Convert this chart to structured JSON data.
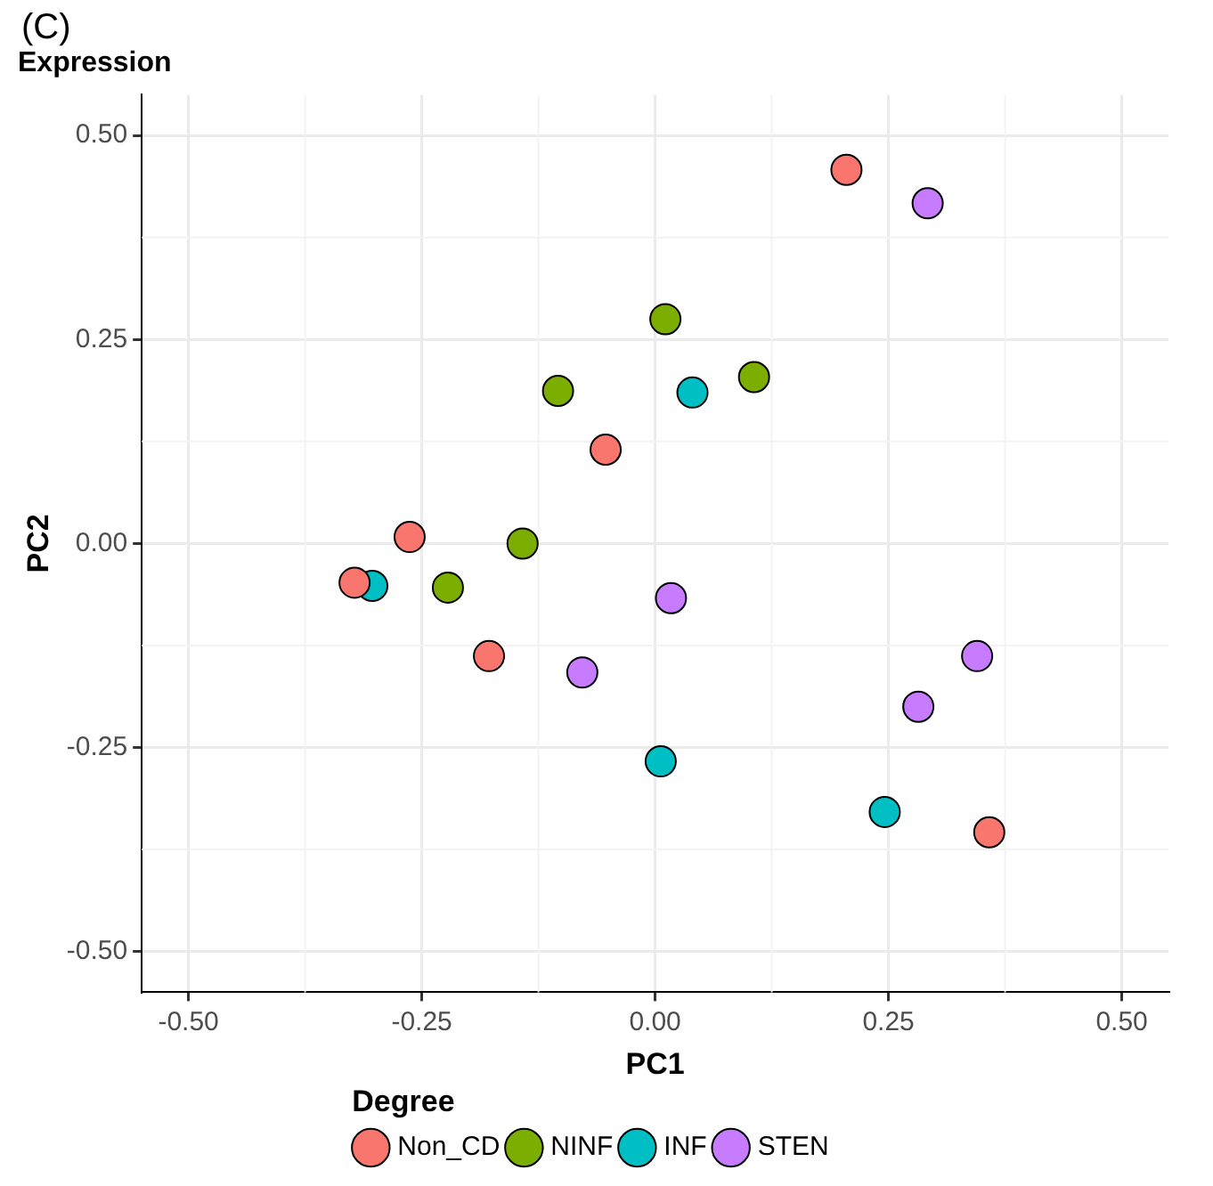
{
  "chart_data": {
    "type": "scatter",
    "title": "Expression",
    "xlabel": "PC1",
    "ylabel": "PC2",
    "legend_title": "Degree",
    "annotations": [
      "(C)"
    ],
    "xlim": [
      -0.55,
      0.55
    ],
    "ylim": [
      -0.55,
      0.55
    ],
    "xticks": [
      {
        "value": -0.5,
        "label": "-0.50"
      },
      {
        "value": -0.25,
        "label": "-0.25"
      },
      {
        "value": 0,
        "label": "0.00"
      },
      {
        "value": 0.25,
        "label": "0.25"
      },
      {
        "value": 0.5,
        "label": "0.50"
      }
    ],
    "yticks": [
      {
        "value": -0.5,
        "label": "-0.50"
      },
      {
        "value": -0.25,
        "label": "-0.25"
      },
      {
        "value": 0,
        "label": "0.00"
      },
      {
        "value": 0.25,
        "label": "0.25"
      },
      {
        "value": 0.5,
        "label": "0.50"
      }
    ],
    "grid": true,
    "legend": "bottom",
    "marker": "circle",
    "series": [
      {
        "name": "Non_CD",
        "color": "#f8766d",
        "x": [
          0.205,
          -0.053,
          -0.263,
          -0.322,
          -0.178,
          0.358
        ],
        "values": [
          0.458,
          0.115,
          0.008,
          -0.048,
          -0.138,
          -0.354
        ]
      },
      {
        "name": "NINF",
        "color": "#7cae00",
        "x": [
          0.011,
          -0.104,
          0.106,
          -0.142,
          -0.222
        ],
        "values": [
          0.275,
          0.187,
          0.204,
          0.0,
          -0.054
        ]
      },
      {
        "name": "INF",
        "color": "#00bfc4",
        "x": [
          0.04,
          -0.303,
          0.006,
          0.246
        ],
        "values": [
          0.185,
          -0.052,
          -0.267,
          -0.329
        ]
      },
      {
        "name": "STEN",
        "color": "#c77cff",
        "x": [
          0.292,
          0.017,
          -0.078,
          0.282,
          0.345
        ],
        "values": [
          0.417,
          -0.067,
          -0.158,
          -0.2,
          -0.138
        ]
      }
    ]
  }
}
